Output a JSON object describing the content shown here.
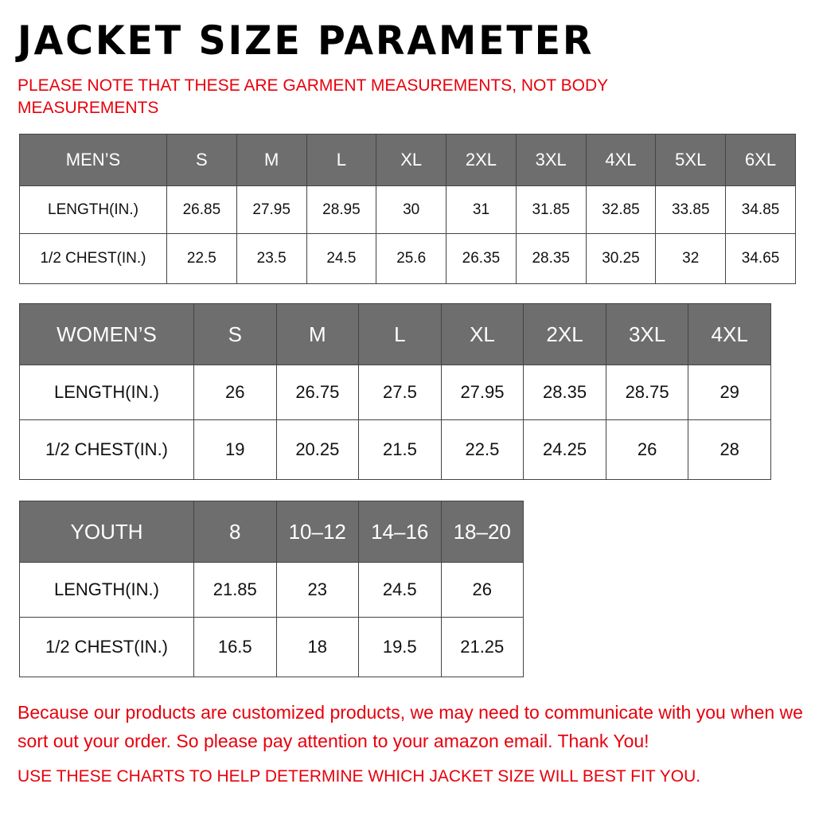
{
  "title": "JACKET SIZE PARAMETER",
  "note": "PLEASE NOTE THAT THESE ARE GARMENT MEASUREMENTS, NOT BODY MEASUREMENTS",
  "mens": {
    "header": [
      "MEN’S",
      "S",
      "M",
      "L",
      "XL",
      "2XL",
      "3XL",
      "4XL",
      "5XL",
      "6XL"
    ],
    "rows": [
      [
        "LENGTH(IN.)",
        "26.85",
        "27.95",
        "28.95",
        "30",
        "31",
        "31.85",
        "32.85",
        "33.85",
        "34.85"
      ],
      [
        "1/2 CHEST(IN.)",
        "22.5",
        "23.5",
        "24.5",
        "25.6",
        "26.35",
        "28.35",
        "30.25",
        "32",
        "34.65"
      ]
    ]
  },
  "womens": {
    "header": [
      "WOMEN’S",
      "S",
      "M",
      "L",
      "XL",
      "2XL",
      "3XL",
      "4XL"
    ],
    "rows": [
      [
        "LENGTH(IN.)",
        "26",
        "26.75",
        "27.5",
        "27.95",
        "28.35",
        "28.75",
        "29"
      ],
      [
        "1/2 CHEST(IN.)",
        "19",
        "20.25",
        "21.5",
        "22.5",
        "24.25",
        "26",
        "28"
      ]
    ]
  },
  "youth": {
    "header": [
      "YOUTH",
      "8",
      "10–12",
      "14–16",
      "18–20"
    ],
    "rows": [
      [
        "LENGTH(IN.)",
        "21.85",
        "23",
        "24.5",
        "26"
      ],
      [
        "1/2 CHEST(IN.)",
        "16.5",
        "18",
        "19.5",
        "21.25"
      ]
    ]
  },
  "footer": {
    "line1": "Because our products are customized products, we may need to communicate with you when we sort out your order. So please pay attention to your amazon email. Thank You!",
    "line2": "USE THESE CHARTS TO HELP DETERMINE WHICH JACKET SIZE WILL BEST FIT YOU."
  },
  "colors": {
    "header_bg": "#6e6e6e",
    "accent_red": "#e8000b"
  }
}
